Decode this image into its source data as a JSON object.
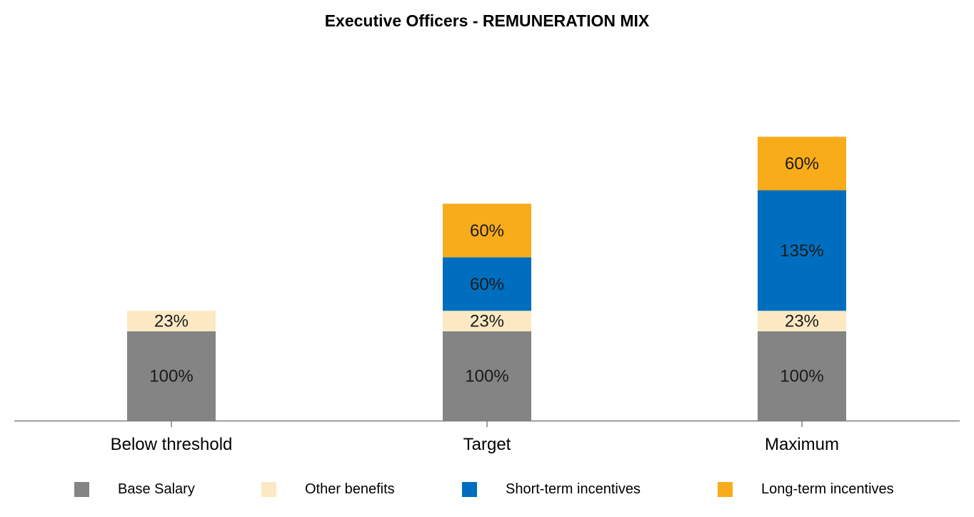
{
  "chart_data": {
    "type": "bar",
    "stacked": true,
    "title": "Executive Officers - REMUNERATION MIX",
    "xlabel": "",
    "ylabel": "",
    "categories": [
      "Below threshold",
      "Target",
      "Maximum"
    ],
    "ylim": [
      0,
      350
    ],
    "grid": false,
    "legend_position": "bottom",
    "series": [
      {
        "name": "Base Salary",
        "color": "#848484",
        "values": [
          100,
          100,
          100
        ],
        "labels": [
          "100%",
          "100%",
          "100%"
        ]
      },
      {
        "name": "Other benefits",
        "color": "#FCE9C3",
        "values": [
          23,
          23,
          23
        ],
        "labels": [
          "23%",
          "23%",
          "23%"
        ]
      },
      {
        "name": "Short-term incentives",
        "color": "#006EBE",
        "values": [
          0,
          60,
          135
        ],
        "labels": [
          "",
          "60%",
          "135%"
        ]
      },
      {
        "name": "Long-term incentives",
        "color": "#F9AC19",
        "values": [
          0,
          60,
          60
        ],
        "labels": [
          "",
          "60%",
          "60%"
        ]
      }
    ]
  }
}
